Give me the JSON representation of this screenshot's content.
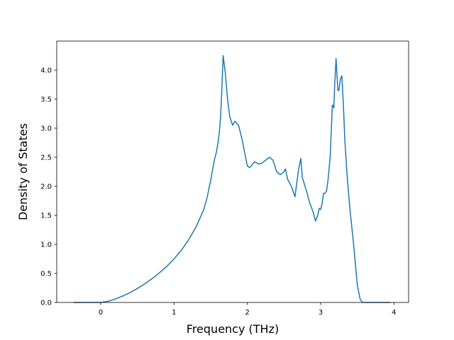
{
  "chart_data": {
    "type": "line",
    "title": "",
    "xlabel": "Frequency (THz)",
    "ylabel": "Density of States",
    "xlim": [
      -0.6,
      4.2
    ],
    "ylim": [
      0.0,
      4.5
    ],
    "xticks": [
      0,
      1,
      2,
      3,
      4
    ],
    "yticks": [
      0.0,
      0.5,
      1.0,
      1.5,
      2.0,
      2.5,
      3.0,
      3.5,
      4.0
    ],
    "xtick_labels": [
      "0",
      "1",
      "2",
      "3",
      "4"
    ],
    "ytick_labels": [
      "0.0",
      "0.5",
      "1.0",
      "1.5",
      "2.0",
      "2.5",
      "3.0",
      "3.5",
      "4.0"
    ],
    "grid": false,
    "legend": "none",
    "colors": {
      "line": "#1f77b4"
    },
    "series": [
      {
        "x": [
          -0.37,
          0.0,
          0.1,
          0.2,
          0.3,
          0.4,
          0.5,
          0.6,
          0.7,
          0.8,
          0.9,
          1.0,
          1.1,
          1.2,
          1.3,
          1.4,
          1.45,
          1.5,
          1.55,
          1.58,
          1.6,
          1.62,
          1.635,
          1.65,
          1.67,
          1.7,
          1.73,
          1.76,
          1.8,
          1.83,
          1.88,
          1.93,
          1.96,
          2.0,
          2.03,
          2.05,
          2.07,
          2.1,
          2.13,
          2.16,
          2.2,
          2.25,
          2.3,
          2.35,
          2.4,
          2.45,
          2.5,
          2.52,
          2.55,
          2.6,
          2.65,
          2.7,
          2.73,
          2.75,
          2.8,
          2.85,
          2.9,
          2.93,
          2.96,
          2.98,
          3.0,
          3.02,
          3.04,
          3.06,
          3.08,
          3.1,
          3.13,
          3.16,
          3.18,
          3.19,
          3.21,
          3.235,
          3.25,
          3.27,
          3.29,
          3.31,
          3.33,
          3.36,
          3.4,
          3.45,
          3.5,
          3.54,
          3.57,
          3.6,
          3.62,
          3.65,
          3.7,
          3.8,
          3.95
        ],
        "y": [
          0.0,
          0.0,
          0.02,
          0.06,
          0.11,
          0.17,
          0.24,
          0.32,
          0.41,
          0.51,
          0.62,
          0.75,
          0.9,
          1.08,
          1.3,
          1.58,
          1.8,
          2.1,
          2.45,
          2.6,
          2.75,
          2.95,
          3.2,
          3.6,
          4.25,
          3.95,
          3.5,
          3.2,
          3.05,
          3.12,
          3.05,
          2.8,
          2.6,
          2.35,
          2.32,
          2.35,
          2.38,
          2.42,
          2.4,
          2.38,
          2.4,
          2.45,
          2.5,
          2.45,
          2.25,
          2.2,
          2.25,
          2.3,
          2.12,
          2.0,
          1.82,
          2.3,
          2.48,
          2.15,
          1.95,
          1.72,
          1.55,
          1.4,
          1.5,
          1.62,
          1.6,
          1.7,
          1.88,
          1.88,
          1.92,
          2.1,
          2.5,
          3.4,
          3.35,
          3.7,
          4.2,
          3.65,
          3.65,
          3.85,
          3.9,
          3.4,
          2.8,
          2.2,
          1.6,
          1.0,
          0.3,
          0.05,
          0.0,
          0.0,
          0.0,
          0.0,
          0.0,
          0.0,
          0.0
        ]
      }
    ]
  }
}
